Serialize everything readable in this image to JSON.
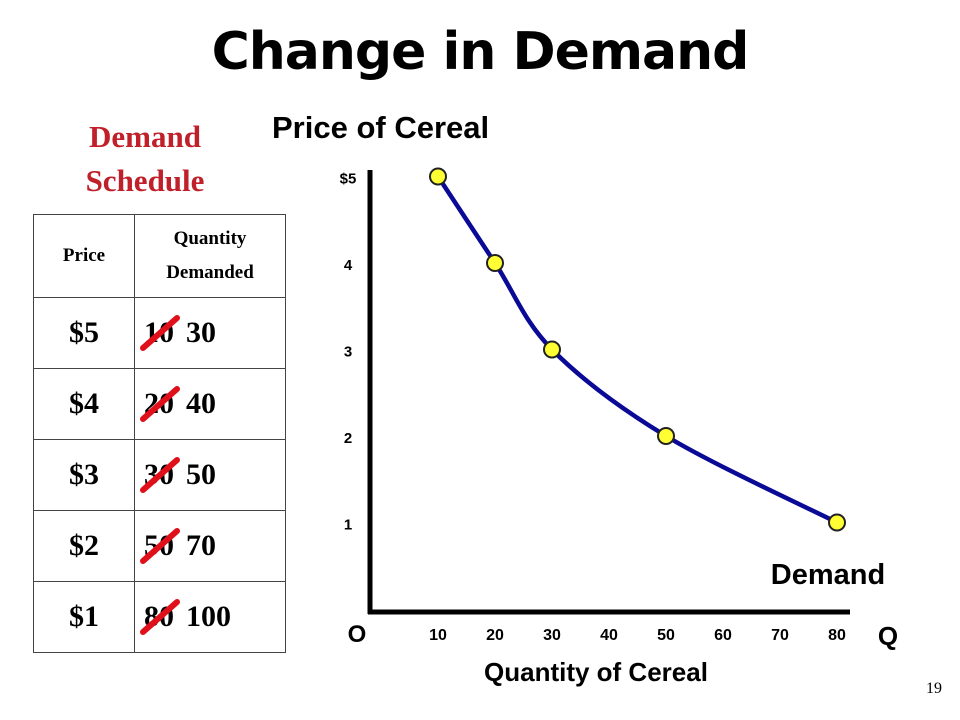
{
  "slide": {
    "title": "Change in Demand",
    "page_number": "19"
  },
  "schedule": {
    "heading_line1": "Demand",
    "heading_line2": "Schedule",
    "col_price": "Price",
    "col_quantity_line1": "Quantity",
    "col_quantity_line2": "Demanded",
    "rows": [
      {
        "price": "$5",
        "old_quantity": "10",
        "new_quantity": "30"
      },
      {
        "price": "$4",
        "old_quantity": "20",
        "new_quantity": "40"
      },
      {
        "price": "$3",
        "old_quantity": "30",
        "new_quantity": "50"
      },
      {
        "price": "$2",
        "old_quantity": "50",
        "new_quantity": "70"
      },
      {
        "price": "$1",
        "old_quantity": "80",
        "new_quantity": "100"
      }
    ]
  },
  "chart_data": {
    "type": "line",
    "title": "Price of Cereal",
    "xlabel": "Quantity of Cereal",
    "x_axis_end_label": "Q",
    "origin_label": "O",
    "series": [
      {
        "name": "Demand",
        "points": [
          {
            "x": 10,
            "y": 5
          },
          {
            "x": 20,
            "y": 4
          },
          {
            "x": 30,
            "y": 3
          },
          {
            "x": 50,
            "y": 2
          },
          {
            "x": 80,
            "y": 1
          }
        ]
      }
    ],
    "x_ticks": [
      "10",
      "20",
      "30",
      "40",
      "50",
      "60",
      "70",
      "80"
    ],
    "y_ticks": [
      "1",
      "2",
      "3",
      "4",
      "$5"
    ],
    "xlim": [
      0,
      80
    ],
    "ylim": [
      0,
      5
    ],
    "grid": false,
    "colors": {
      "curve": "#0a0a96",
      "point_fill": "#ffff33",
      "point_stroke": "#222222",
      "strike": "#e0101a"
    }
  }
}
